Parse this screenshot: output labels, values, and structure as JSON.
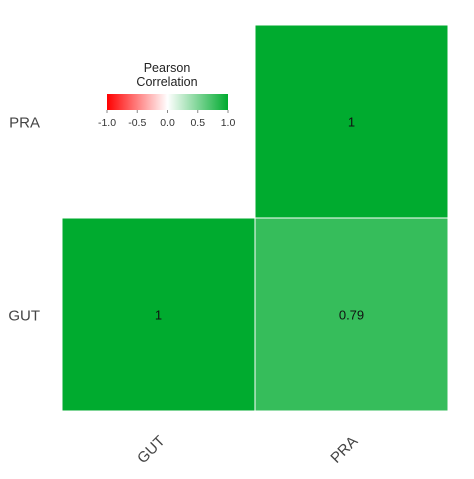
{
  "chart_data": {
    "type": "heatmap",
    "x_categories": [
      "GUT",
      "PRA"
    ],
    "y_categories": [
      "GUT",
      "PRA"
    ],
    "cells": [
      {
        "x": "GUT",
        "y": "GUT",
        "value": 1,
        "label": "1"
      },
      {
        "x": "PRA",
        "y": "GUT",
        "value": 0.79,
        "label": "0.79"
      },
      {
        "x": "PRA",
        "y": "PRA",
        "value": 1,
        "label": "1"
      }
    ],
    "legend": {
      "title_line1": "Pearson",
      "title_line2": "Correlation",
      "range": [
        -1,
        1
      ],
      "ticks": [
        "-1.0",
        "-0.5",
        "0.0",
        "0.5",
        "1.0"
      ],
      "colors": {
        "low": "#ff0000",
        "mid": "#ffffff",
        "high": "#00ab2f"
      },
      "placement": "top-left"
    },
    "cell_border_color": "#ffffff",
    "grid": false
  }
}
